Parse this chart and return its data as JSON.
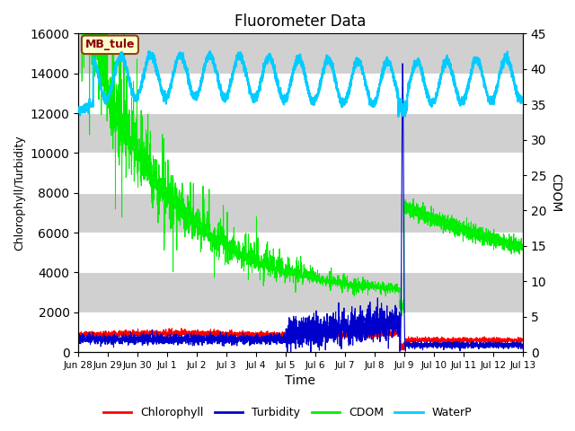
{
  "title": "Fluorometer Data",
  "xlabel": "Time",
  "ylabel_left": "Chlorophyll/Turbidity",
  "ylabel_right": "CDOM",
  "ylim_left": [
    0,
    16000
  ],
  "ylim_right": [
    0,
    45
  ],
  "annotation_text": "MB_tule",
  "annotation_bg": "#FFFFCC",
  "annotation_border": "#8B4513",
  "bg_color": "#DCDCDC",
  "bg_band_light": "#E8E8E8",
  "bg_band_dark": "#D0D0D0",
  "grid_color": "#FFFFFF",
  "colors": {
    "Chlorophyll": "#FF0000",
    "Turbidity": "#0000CC",
    "CDOM": "#00EE00",
    "WaterP": "#00CCFF"
  },
  "tick_labels": [
    "Jun 28",
    "Jun 29",
    "Jun 30",
    "Jul 1",
    "Jul 2",
    "Jul 3",
    "Jul 4",
    "Jul 5",
    "Jul 6",
    "Jul 7",
    "Jul 8",
    "Jul 9",
    "Jul 10",
    "Jul 11",
    "Jul 12",
    "Jul 13"
  ],
  "tick_positions": [
    0,
    1,
    2,
    3,
    4,
    5,
    6,
    7,
    8,
    9,
    10,
    11,
    12,
    13,
    14,
    15
  ],
  "xlim": [
    0,
    15
  ]
}
